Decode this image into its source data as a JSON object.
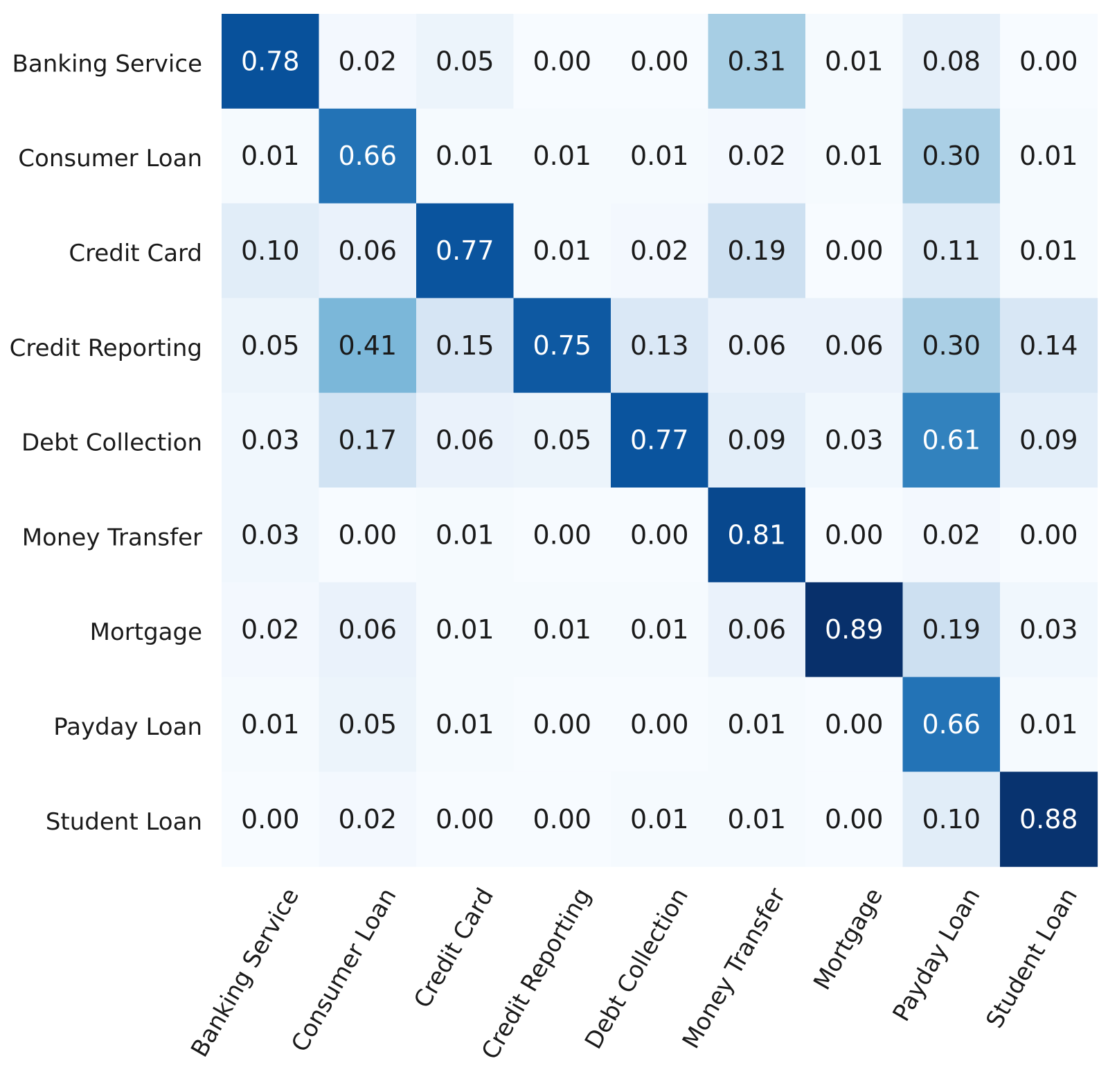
{
  "chart_data": {
    "type": "heatmap",
    "title": "",
    "xlabel": "",
    "ylabel": "",
    "rows": [
      "Banking Service",
      "Consumer Loan",
      "Credit Card",
      "Credit Reporting",
      "Debt Collection",
      "Money Transfer",
      "Mortgage",
      "Payday Loan",
      "Student Loan"
    ],
    "columns": [
      "Banking Service",
      "Consumer Loan",
      "Credit Card",
      "Credit Reporting",
      "Debt Collection",
      "Money Transfer",
      "Mortgage",
      "Payday Loan",
      "Student Loan"
    ],
    "values": [
      [
        0.78,
        0.02,
        0.05,
        0.0,
        0.0,
        0.31,
        0.01,
        0.08,
        0.0
      ],
      [
        0.01,
        0.66,
        0.01,
        0.01,
        0.01,
        0.02,
        0.01,
        0.3,
        0.01
      ],
      [
        0.1,
        0.06,
        0.77,
        0.01,
        0.02,
        0.19,
        0.0,
        0.11,
        0.01
      ],
      [
        0.05,
        0.41,
        0.15,
        0.75,
        0.13,
        0.06,
        0.06,
        0.3,
        0.14
      ],
      [
        0.03,
        0.17,
        0.06,
        0.05,
        0.77,
        0.09,
        0.03,
        0.61,
        0.09
      ],
      [
        0.03,
        0.0,
        0.01,
        0.0,
        0.0,
        0.81,
        0.0,
        0.02,
        0.0
      ],
      [
        0.02,
        0.06,
        0.01,
        0.01,
        0.01,
        0.06,
        0.89,
        0.19,
        0.03
      ],
      [
        0.01,
        0.05,
        0.01,
        0.0,
        0.0,
        0.01,
        0.0,
        0.66,
        0.01
      ],
      [
        0.0,
        0.02,
        0.0,
        0.0,
        0.01,
        0.01,
        0.0,
        0.1,
        0.88
      ]
    ],
    "value_format_decimals": 2,
    "colormap": "Blues",
    "vmin": 0,
    "vmax": 0.89,
    "colorbar": false,
    "grid": false
  }
}
